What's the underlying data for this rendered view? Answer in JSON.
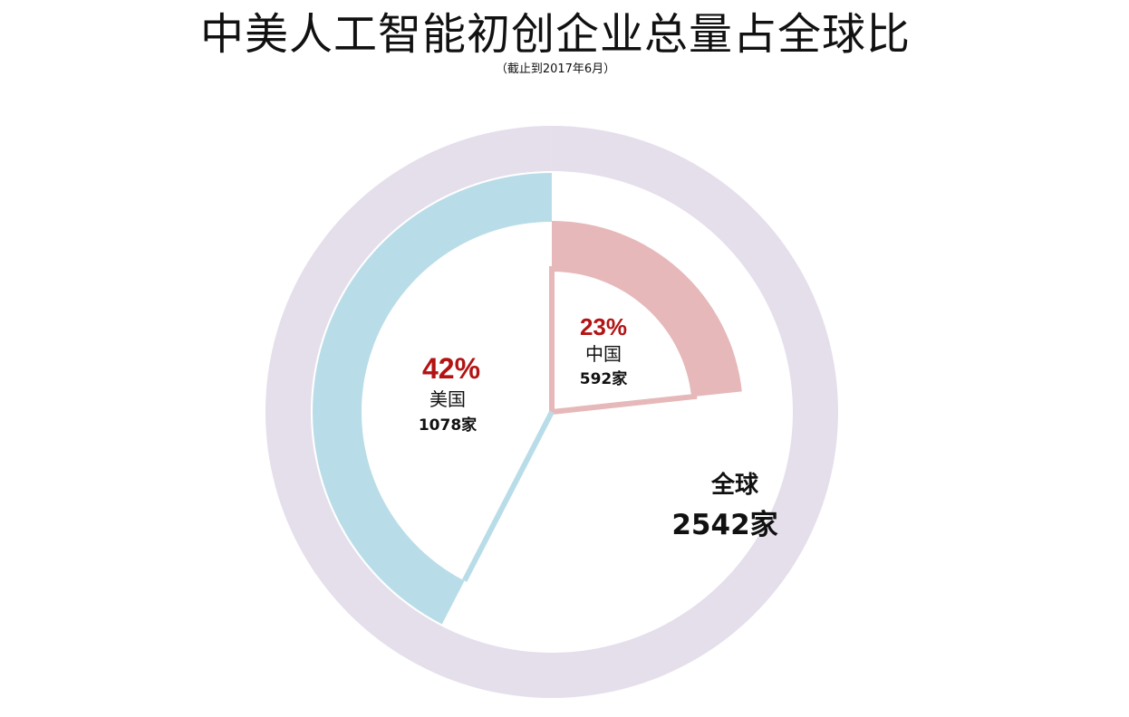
{
  "header": {
    "title": "中美人工智能初创企业总量占全球比",
    "subtitle": "（截止到2017年6月）"
  },
  "chart_data": {
    "type": "pie",
    "title": "中美人工智能初创企业总量占全球比",
    "subtitle": "（截止到2017年6月）",
    "total": {
      "label": "全球",
      "value": 2542,
      "value_text": "2542家"
    },
    "slices": [
      {
        "name": "中国",
        "value": 592,
        "percent": 23,
        "percent_text": "23%",
        "count_text": "592家",
        "color": "#e6b8b9"
      },
      {
        "name": "美国",
        "value": 1078,
        "percent": 42,
        "percent_text": "42%",
        "count_text": "1078家",
        "color": "#b9dde8"
      }
    ],
    "colors": {
      "outer_ring": "#e5dfec",
      "percent_label": "#b31313",
      "text": "#111111"
    }
  }
}
